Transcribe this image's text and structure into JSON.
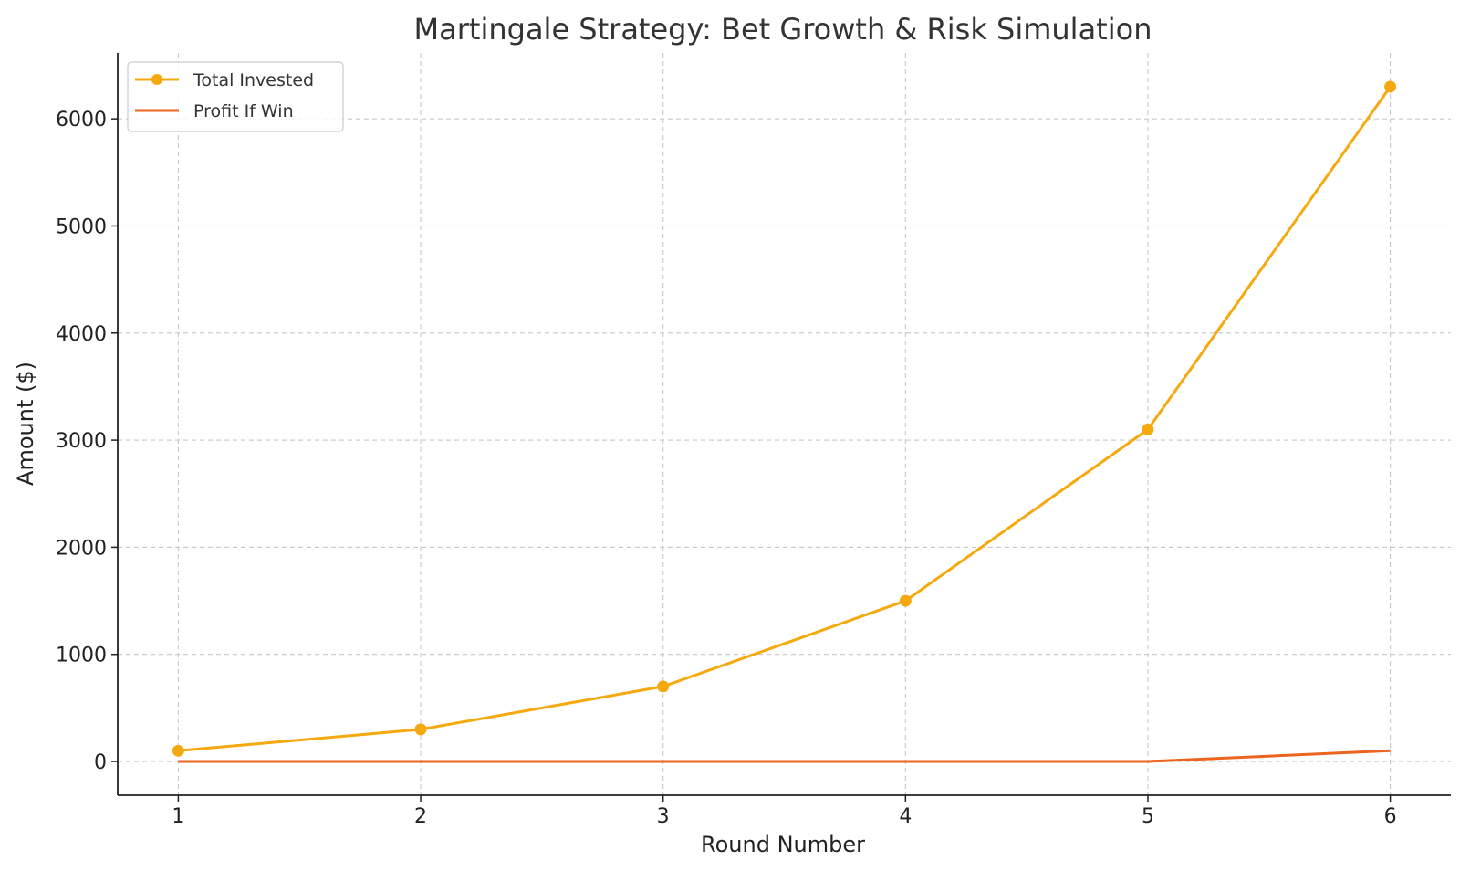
{
  "chart_data": {
    "type": "line",
    "title": "Martingale Strategy: Bet Growth & Risk Simulation",
    "xlabel": "Round Number",
    "ylabel": "Amount ($)",
    "x": [
      1,
      2,
      3,
      4,
      5,
      6
    ],
    "xticks": [
      "1",
      "2",
      "3",
      "4",
      "5",
      "6"
    ],
    "yticks": [
      "0",
      "1000",
      "2000",
      "3000",
      "4000",
      "5000",
      "6000"
    ],
    "xlim": [
      0.75,
      6.25
    ],
    "ylim": [
      -315,
      6615
    ],
    "grid": true,
    "legend_position": "top-left",
    "series": [
      {
        "name": "Total Invested",
        "values": [
          100,
          300,
          700,
          1500,
          3100,
          6300
        ],
        "color": "#f5a90f",
        "markers": true
      },
      {
        "name": "Profit If Win",
        "values": [
          0,
          0,
          0,
          0,
          0,
          100
        ],
        "color": "#ec6420",
        "markers": false
      }
    ]
  }
}
